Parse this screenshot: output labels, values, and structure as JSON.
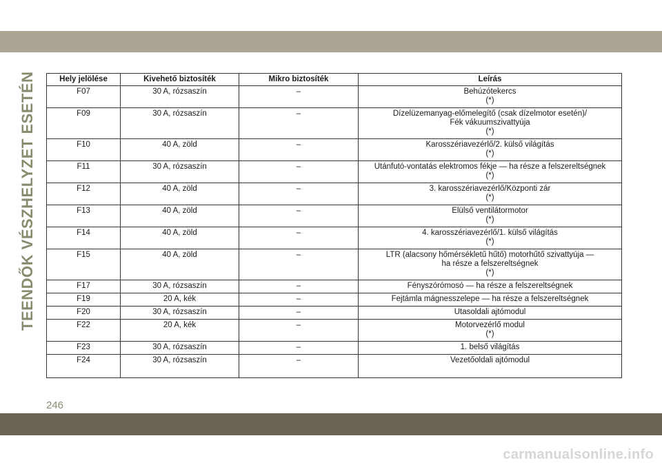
{
  "side_title": "TEENDŐK VÉSZHELYZET ESETÉN",
  "table": {
    "headers": [
      "Hely jelölése",
      "Kivehető biztosíték",
      "Mikro biztosíték",
      "Leírás"
    ],
    "rows": [
      {
        "hely": "F07",
        "kivehet": "30 A, rózsaszín",
        "mikro": "–",
        "leiras": [
          "Behúzótekercs",
          "(*)"
        ]
      },
      {
        "hely": "F09",
        "kivehet": "30 A, rózsaszín",
        "mikro": "–",
        "leiras": [
          "Dízelüzemanyag-előmelegítő (csak dízelmotor esetén)/",
          "Fék vákuumszivattyúja",
          "(*)"
        ]
      },
      {
        "hely": "F10",
        "kivehet": "40 A, zöld",
        "mikro": "–",
        "leiras": [
          "Karosszériavezérlő/2. külső világítás",
          "(*)"
        ]
      },
      {
        "hely": "F11",
        "kivehet": "30 A, rózsaszín",
        "mikro": "–",
        "leiras": [
          "Utánfutó-vontatás elektromos fékje — ha része a felszereltségnek",
          "(*)"
        ]
      },
      {
        "hely": "F12",
        "kivehet": "40 A, zöld",
        "mikro": "–",
        "leiras": [
          "3. karosszériavezérlő/Központi zár",
          "(*)"
        ]
      },
      {
        "hely": "F13",
        "kivehet": "40 A, zöld",
        "mikro": "–",
        "leiras": [
          "Elülső ventilátormotor",
          "(*)"
        ]
      },
      {
        "hely": "F14",
        "kivehet": "40 A, zöld",
        "mikro": "–",
        "leiras": [
          "4. karosszériavezérlő/1. külső világítás",
          "(*)"
        ]
      },
      {
        "hely": "F15",
        "kivehet": "40 A, zöld",
        "mikro": "–",
        "leiras": [
          "LTR (alacsony hőmérsékletű hűtő) motorhűtő szivattyúja —",
          "ha része a felszereltségnek",
          "(*)"
        ]
      },
      {
        "hely": "F17",
        "kivehet": "30 A, rózsaszín",
        "mikro": "–",
        "leiras": [
          "Fényszórómosó — ha része a felszereltségnek"
        ]
      },
      {
        "hely": "F19",
        "kivehet": "20 A, kék",
        "mikro": "–",
        "leiras": [
          "Fejtámla mágnesszelepe — ha része a felszereltségnek"
        ]
      },
      {
        "hely": "F20",
        "kivehet": "30 A, rózsaszín",
        "mikro": "–",
        "leiras": [
          "Utasoldali ajtómodul"
        ]
      },
      {
        "hely": "F22",
        "kivehet": "20 A, kék",
        "mikro": "–",
        "leiras": [
          "Motorvezérlő modul",
          "(*)"
        ]
      },
      {
        "hely": "F23",
        "kivehet": "30 A, rózsaszín",
        "mikro": "–",
        "leiras": [
          "1. belső világítás"
        ]
      },
      {
        "hely": "F24",
        "kivehet": "30 A, rózsaszín",
        "mikro": "–",
        "leiras": [
          "Vezetőoldali ajtómodul"
        ]
      }
    ]
  },
  "page_number": "246",
  "watermark": "carmanualsonline.info",
  "colors": {
    "top_band": "#aca594",
    "bottom_band": "#6c6456",
    "side_title": "#898b6e"
  }
}
